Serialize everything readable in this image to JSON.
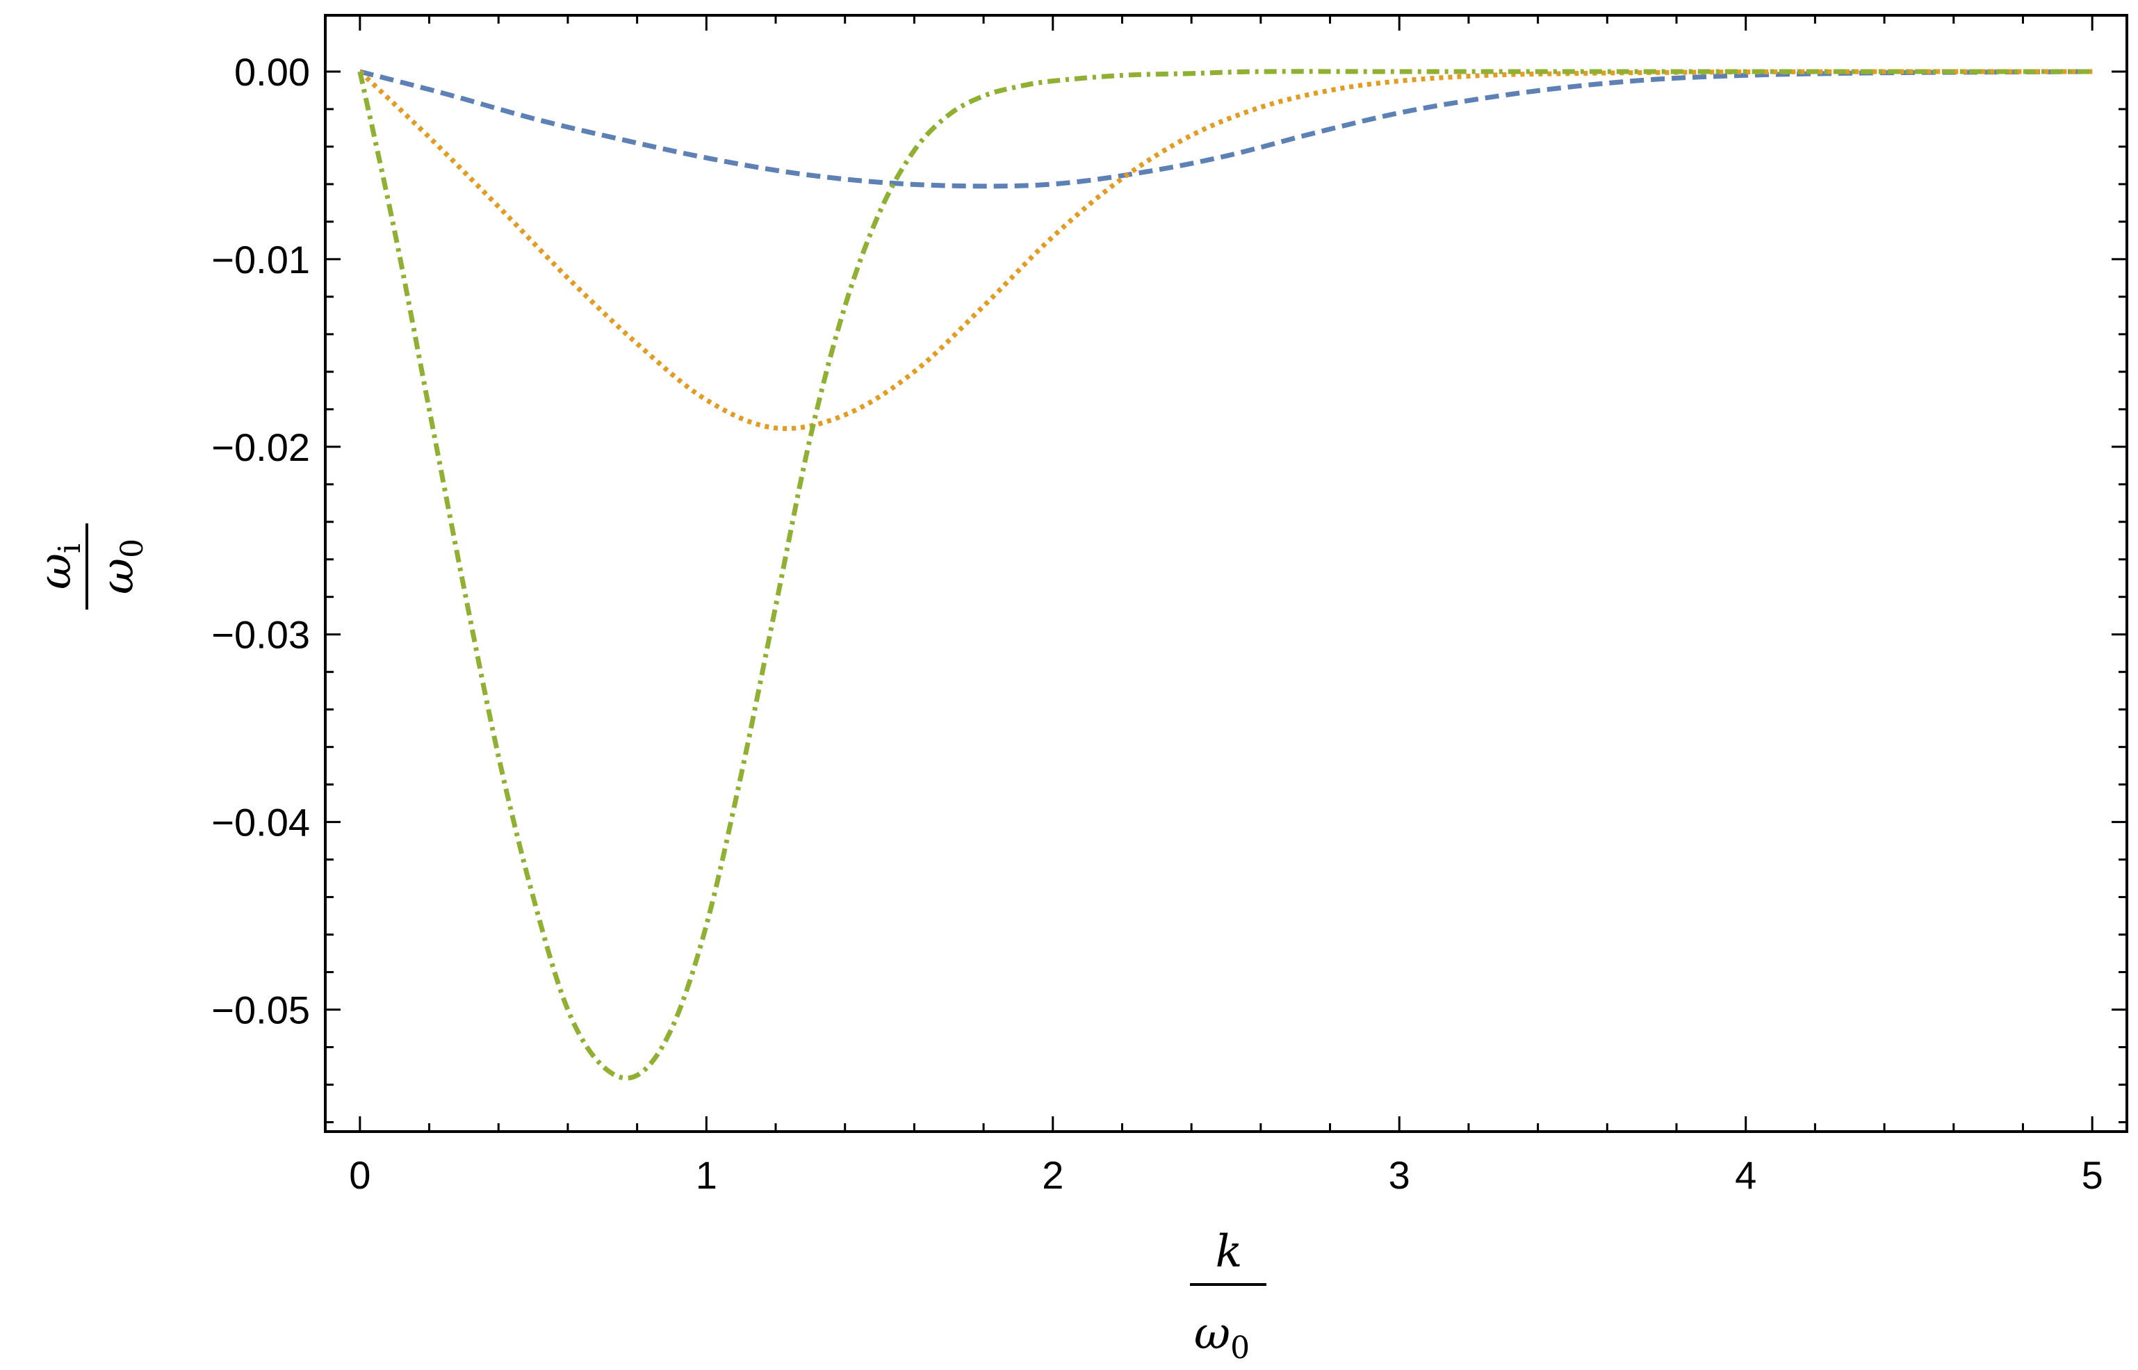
{
  "chart_data": {
    "type": "line",
    "title": "",
    "xlabel": {
      "numerator": "k",
      "denominator": "ω",
      "denominator_sub": "0"
    },
    "ylabel": {
      "numerator": "ω",
      "numerator_sub": "i",
      "denominator": "ω",
      "denominator_sub": "0"
    },
    "xlim": [
      -0.1,
      5.1
    ],
    "ylim": [
      -0.0565,
      0.003
    ],
    "x_ticks": [
      0,
      1,
      2,
      3,
      4,
      5
    ],
    "x_tick_labels": [
      "0",
      "1",
      "2",
      "3",
      "4",
      "5"
    ],
    "y_ticks": [
      0,
      -0.01,
      -0.02,
      -0.03,
      -0.04,
      -0.05
    ],
    "y_tick_labels": [
      "0.00",
      "−0.01",
      "−0.02",
      "−0.03",
      "−0.04",
      "−0.05"
    ],
    "grid": false,
    "legend": "none",
    "series": [
      {
        "color": "#5e81b5",
        "dash": "dashed",
        "x": [
          0,
          0.25,
          0.5,
          0.75,
          1.0,
          1.25,
          1.5,
          1.75,
          2.0,
          2.25,
          2.5,
          2.75,
          3.0,
          3.25,
          3.5,
          3.75,
          4.0,
          4.25,
          4.5,
          5.0
        ],
        "y": [
          0,
          -0.0012,
          -0.0025,
          -0.0036,
          -0.0046,
          -0.0054,
          -0.0059,
          -0.0061,
          -0.006,
          -0.0054,
          -0.0045,
          -0.0033,
          -0.0022,
          -0.0014,
          -0.0008,
          -0.0004,
          -0.0002,
          -0.0001,
          -5e-05,
          0
        ]
      },
      {
        "color": "#e19c24",
        "dash": "dotted",
        "x": [
          0,
          0.2,
          0.4,
          0.6,
          0.8,
          1.0,
          1.2,
          1.4,
          1.6,
          1.8,
          2.0,
          2.2,
          2.4,
          2.6,
          2.8,
          3.0,
          3.25,
          3.5,
          3.75,
          4.0,
          4.5,
          5.0
        ],
        "y": [
          0,
          -0.0035,
          -0.0072,
          -0.011,
          -0.0145,
          -0.0175,
          -0.019,
          -0.0183,
          -0.016,
          -0.0125,
          -0.0088,
          -0.0057,
          -0.0034,
          -0.0019,
          -0.001,
          -0.0005,
          -0.0002,
          -0.0001,
          -5e-05,
          -2e-05,
          0,
          0
        ]
      },
      {
        "color": "#8fb032",
        "dash": "dashdot",
        "x": [
          0,
          0.1,
          0.2,
          0.3,
          0.4,
          0.5,
          0.6,
          0.7,
          0.8,
          0.9,
          1.0,
          1.1,
          1.2,
          1.3,
          1.4,
          1.5,
          1.6,
          1.7,
          1.8,
          1.9,
          2.0,
          2.2,
          2.4,
          2.6,
          3.0,
          3.5,
          4.0,
          5.0
        ],
        "y": [
          0,
          -0.0085,
          -0.018,
          -0.0275,
          -0.0365,
          -0.044,
          -0.05,
          -0.053,
          -0.0535,
          -0.051,
          -0.0455,
          -0.0375,
          -0.0285,
          -0.0195,
          -0.0125,
          -0.0075,
          -0.0042,
          -0.0023,
          -0.0013,
          -0.0008,
          -0.0005,
          -0.0002,
          -0.0001,
          0,
          0,
          0,
          0,
          0
        ]
      }
    ]
  }
}
